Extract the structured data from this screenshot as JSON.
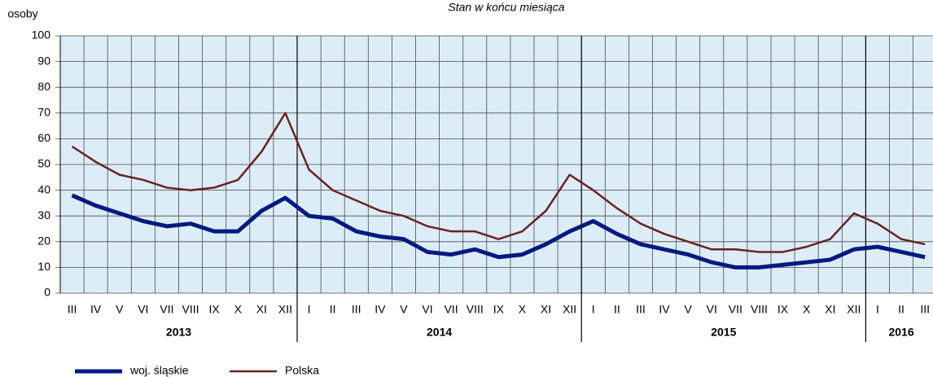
{
  "chart_data": {
    "type": "line",
    "subtitle": "Stan w końcu miesiąca",
    "y_label": "osoby",
    "categories": [
      "III",
      "IV",
      "V",
      "VI",
      "VII",
      "VIII",
      "IX",
      "X",
      "XI",
      "XII",
      "I",
      "II",
      "III",
      "IV",
      "V",
      "VI",
      "VII",
      "VIII",
      "IX",
      "X",
      "XI",
      "XII",
      "I",
      "II",
      "III",
      "IV",
      "V",
      "VI",
      "VII",
      "VIII",
      "IX",
      "X",
      "XI",
      "XII",
      "I",
      "II",
      "III"
    ],
    "years": [
      "2013",
      "2014",
      "2015",
      "2016"
    ],
    "series": [
      {
        "name": "woj. śląskie",
        "color": "#001a7f",
        "width": 5,
        "values": [
          38,
          34,
          31,
          28,
          26,
          27,
          24,
          24,
          32,
          37,
          30,
          29,
          24,
          22,
          21,
          16,
          15,
          17,
          14,
          15,
          19,
          24,
          28,
          23,
          19,
          17,
          15,
          12,
          10,
          10,
          11,
          12,
          13,
          17,
          18,
          16,
          14
        ]
      },
      {
        "name": "Polska",
        "color": "#6b2222",
        "width": 2.5,
        "values": [
          57,
          51,
          46,
          44,
          41,
          40,
          41,
          44,
          55,
          70,
          48,
          40,
          36,
          32,
          30,
          26,
          24,
          24,
          21,
          24,
          32,
          46,
          40,
          33,
          27,
          23,
          20,
          17,
          17,
          16,
          16,
          18,
          21,
          31,
          27,
          21,
          19
        ]
      }
    ],
    "ylim": [
      0,
      100
    ],
    "yticks": [
      0,
      10,
      20,
      30,
      40,
      50,
      60,
      70,
      80,
      90,
      100
    ],
    "grid": true
  }
}
